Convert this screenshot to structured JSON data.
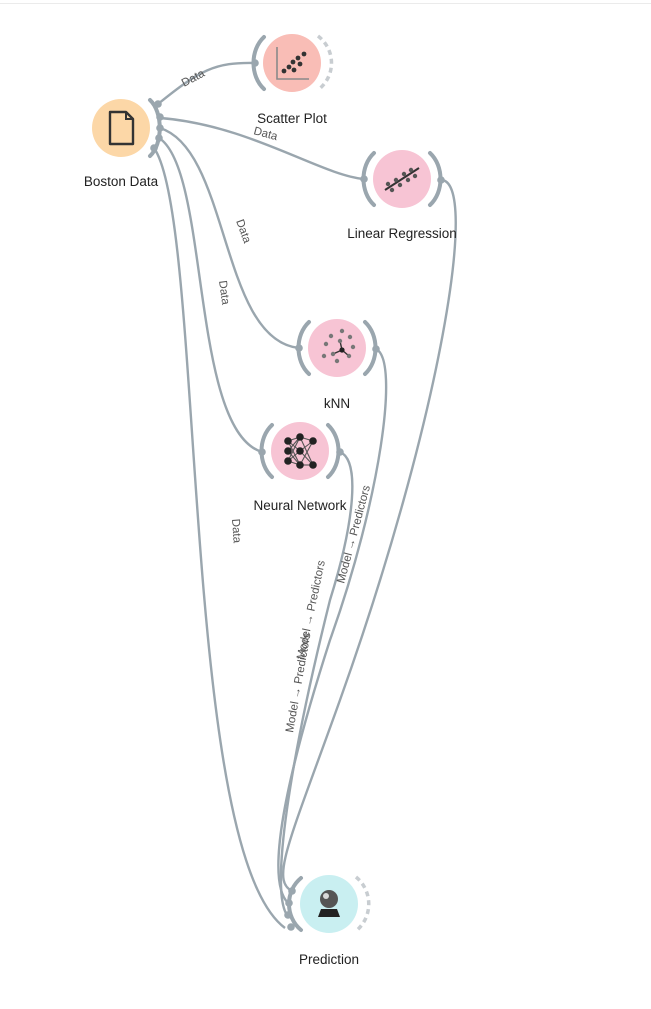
{
  "nodes": {
    "boston": {
      "label": "Boston Data",
      "icon": "file-icon",
      "color": "#fcd7a7"
    },
    "scatter": {
      "label": "Scatter Plot",
      "icon": "scatter-plot-icon",
      "color": "#f9bdb6"
    },
    "linreg": {
      "label": "Linear Regression",
      "icon": "regression-icon",
      "color": "#f7c4d4"
    },
    "knn": {
      "label": "kNN",
      "icon": "knn-icon",
      "color": "#f7c4d4"
    },
    "nn": {
      "label": "Neural Network",
      "icon": "neural-network-icon",
      "color": "#f7c4d4"
    },
    "prediction": {
      "label": "Prediction",
      "icon": "crystal-ball-icon",
      "color": "#c9eff1"
    }
  },
  "links": {
    "boston_scatter": "Data",
    "boston_linreg": "Data",
    "boston_knn": "Data",
    "boston_nn": "Data",
    "boston_prediction": "Data",
    "linreg_prediction": "Model → Predictors",
    "knn_prediction": "Model → Predictors",
    "nn_prediction": "Model → Predictors"
  },
  "colors": {
    "link": "#9aa6ae",
    "file_widget": "#fcd7a7",
    "visualize_widget": "#f9bdb6",
    "model_widget": "#f7c4d4",
    "evaluate_widget": "#c9eff1"
  }
}
